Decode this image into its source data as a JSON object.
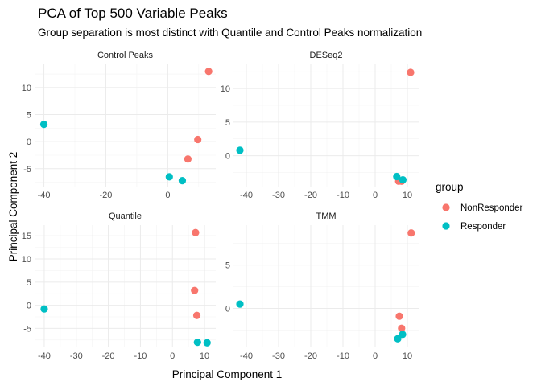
{
  "chart_data": {
    "type": "scatter",
    "title": "PCA of Top 500 Variable Peaks",
    "subtitle": "Group separation is most distinct with Quantile and Control Peaks normalization",
    "xlabel": "Principal Component 1",
    "ylabel": "Principal Component 2",
    "legend": {
      "title": "group",
      "placement": "right",
      "entries": [
        {
          "name": "NonResponder",
          "color": "#F8766D"
        },
        {
          "name": "Responder",
          "color": "#00BFC4"
        }
      ]
    },
    "grid": true,
    "facets": [
      {
        "label": "Control Peaks",
        "xlim": [
          -43,
          15.5
        ],
        "ylim": [
          -8.3,
          14.3
        ],
        "xticks": [
          -40,
          -20,
          0
        ],
        "yticks": [
          -5,
          0,
          5,
          10
        ],
        "points": [
          {
            "x": 13.2,
            "y": 13.0,
            "group": "NonResponder"
          },
          {
            "x": 9.7,
            "y": 0.4,
            "group": "NonResponder"
          },
          {
            "x": 6.5,
            "y": -3.2,
            "group": "NonResponder"
          },
          {
            "x": -40.0,
            "y": 3.2,
            "group": "Responder"
          },
          {
            "x": 0.5,
            "y": -6.5,
            "group": "Responder"
          },
          {
            "x": 4.7,
            "y": -7.2,
            "group": "Responder"
          }
        ]
      },
      {
        "label": "DESeq2",
        "xlim": [
          -44,
          13.5
        ],
        "ylim": [
          -4.6,
          13.6
        ],
        "xticks": [
          -40,
          -30,
          -20,
          -10,
          0,
          10
        ],
        "yticks": [
          0,
          5,
          10
        ],
        "points": [
          {
            "x": 11.0,
            "y": 12.4,
            "group": "NonResponder"
          },
          {
            "x": 7.3,
            "y": -3.8,
            "group": "NonResponder"
          },
          {
            "x": 8.2,
            "y": -3.8,
            "group": "NonResponder"
          },
          {
            "x": -42.0,
            "y": 0.8,
            "group": "Responder"
          },
          {
            "x": 6.7,
            "y": -3.1,
            "group": "Responder"
          },
          {
            "x": 8.6,
            "y": -3.6,
            "group": "Responder"
          }
        ]
      },
      {
        "label": "Quantile",
        "xlim": [
          -43,
          13.5
        ],
        "ylim": [
          -9.1,
          17.3
        ],
        "xticks": [
          -40,
          -30,
          -20,
          -10,
          0,
          10
        ],
        "yticks": [
          -5,
          0,
          5,
          10,
          15
        ],
        "points": [
          {
            "x": 7.2,
            "y": 15.7,
            "group": "NonResponder"
          },
          {
            "x": 6.9,
            "y": 3.2,
            "group": "NonResponder"
          },
          {
            "x": 7.6,
            "y": -2.2,
            "group": "NonResponder"
          },
          {
            "x": -40.0,
            "y": -0.8,
            "group": "Responder"
          },
          {
            "x": 7.8,
            "y": -8.0,
            "group": "Responder"
          },
          {
            "x": 10.8,
            "y": -8.1,
            "group": "Responder"
          }
        ]
      },
      {
        "label": "TMM",
        "xlim": [
          -44,
          13.5
        ],
        "ylim": [
          -4.5,
          9.6
        ],
        "xticks": [
          -40,
          -30,
          -20,
          -10,
          0,
          10
        ],
        "yticks": [
          0,
          5
        ],
        "points": [
          {
            "x": 11.2,
            "y": 8.7,
            "group": "NonResponder"
          },
          {
            "x": 7.5,
            "y": -0.9,
            "group": "NonResponder"
          },
          {
            "x": 8.2,
            "y": -2.3,
            "group": "NonResponder"
          },
          {
            "x": -42.0,
            "y": 0.5,
            "group": "Responder"
          },
          {
            "x": 8.5,
            "y": -3.0,
            "group": "Responder"
          },
          {
            "x": 7.0,
            "y": -3.5,
            "group": "Responder"
          }
        ]
      }
    ]
  }
}
